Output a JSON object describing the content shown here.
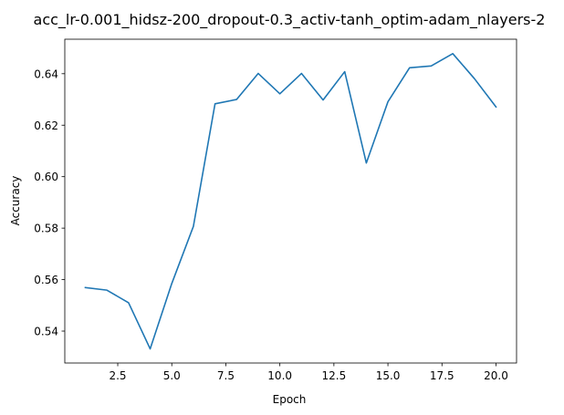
{
  "chart_data": {
    "type": "line",
    "title": "acc_lr-0.001_hidsz-200_dropout-0.3_activ-tanh_optim-adam_nlayers-2",
    "xlabel": "Epoch",
    "ylabel": "Accuracy",
    "xlim": [
      0.05,
      20.95
    ],
    "ylim": [
      0.5276,
      0.6534
    ],
    "x_ticks": [
      2.5,
      5.0,
      7.5,
      10.0,
      12.5,
      15.0,
      17.5,
      20.0
    ],
    "x_tick_labels": [
      "2.5",
      "5.0",
      "7.5",
      "10.0",
      "12.5",
      "15.0",
      "17.5",
      "20.0"
    ],
    "y_ticks": [
      0.54,
      0.56,
      0.58,
      0.6,
      0.62,
      0.64
    ],
    "y_tick_labels": [
      "0.54",
      "0.56",
      "0.58",
      "0.60",
      "0.62",
      "0.64"
    ],
    "grid": false,
    "series": [
      {
        "color": "#1f77b4",
        "x": [
          1,
          2,
          3,
          4,
          5,
          6,
          7,
          8,
          9,
          10,
          11,
          12,
          13,
          14,
          15,
          16,
          17,
          18,
          19,
          20
        ],
        "y": [
          0.5569,
          0.5559,
          0.551,
          0.5331,
          0.5585,
          0.5807,
          0.6283,
          0.63,
          0.6401,
          0.6322,
          0.6401,
          0.6298,
          0.6408,
          0.6053,
          0.6291,
          0.6423,
          0.643,
          0.6478,
          0.6381,
          0.6271
        ]
      }
    ]
  }
}
